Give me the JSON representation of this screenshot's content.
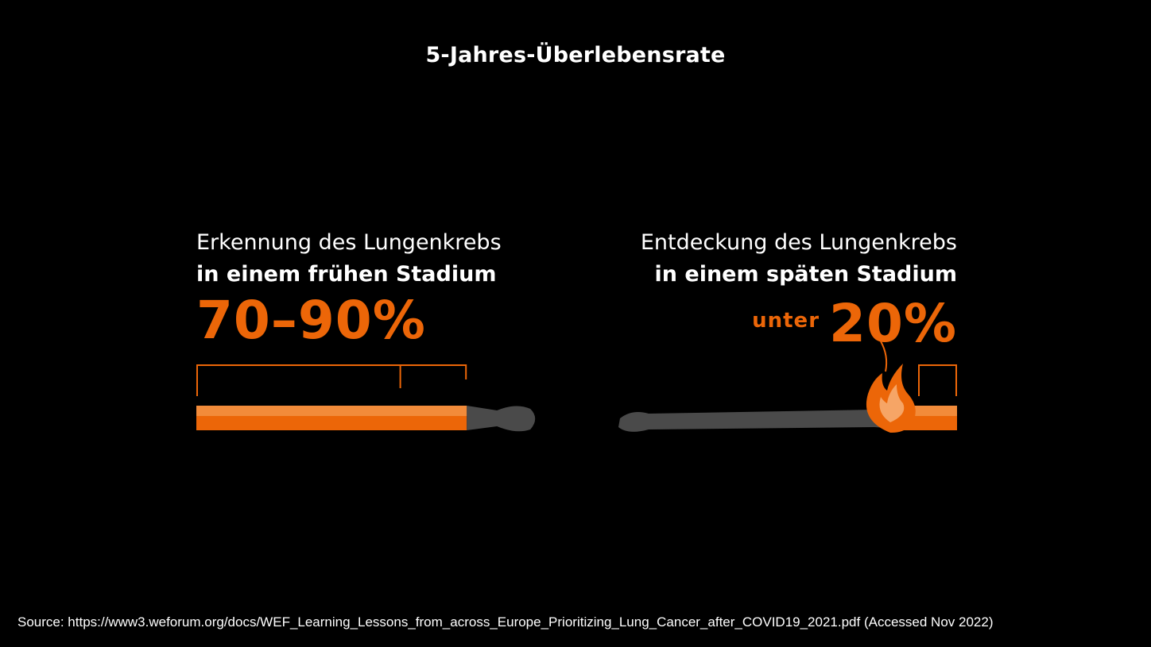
{
  "title": "5-Jahres-Überlebensrate",
  "colors": {
    "background": "#000000",
    "accent": "#ec6608",
    "accent_light": "#f28b3a",
    "burnt": "#4a4a4a",
    "text": "#ffffff"
  },
  "left_panel": {
    "line1": "Erkennung des Lungenkrebs",
    "line2": "in einem frühen Stadium",
    "value": "70–90%"
  },
  "right_panel": {
    "line1": "Entdeckung des Lungenkrebs",
    "line2": "in einem späten Stadium",
    "prefix": "unter",
    "value": "20%"
  },
  "chart_data": {
    "type": "bar",
    "categories": [
      "in einem frühen Stadium",
      "in einem späten Stadium"
    ],
    "series": [
      {
        "values": [
          [
            70,
            90
          ],
          [
            0,
            20
          ]
        ]
      }
    ],
    "ylim": [
      0,
      100
    ],
    "icons": [
      "match-stick-icon",
      "burning-match-icon",
      "flame-icon"
    ]
  },
  "source": "Source: https://www3.weforum.org/docs/WEF_Learning_Lessons_from_across_Europe_Prioritizing_Lung_Cancer_after_COVID19_2021.pdf  (Accessed Nov 2022)"
}
